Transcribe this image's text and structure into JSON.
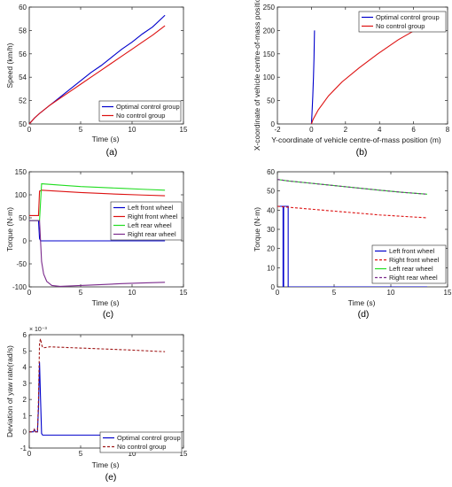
{
  "chart_data": [
    {
      "id": "a",
      "type": "line",
      "caption": "(a)",
      "xlabel": "Time (s)",
      "ylabel": "Speed (km/h)",
      "xlim": [
        0,
        15
      ],
      "ylim": [
        50,
        60
      ],
      "xticks": [
        "0",
        "5",
        "10",
        "15"
      ],
      "yticks": [
        "50",
        "52",
        "54",
        "56",
        "58",
        "60"
      ],
      "legend_position": "bottom-right",
      "series": [
        {
          "name": "Optimal control group",
          "color": "#0000cc",
          "dash": "",
          "x": [
            0,
            0.5,
            1,
            2,
            3,
            4,
            5,
            6,
            7,
            8,
            9,
            10,
            11,
            12,
            13.2
          ],
          "y": [
            50.0,
            50.5,
            50.9,
            51.6,
            52.3,
            53.0,
            53.7,
            54.4,
            55.0,
            55.7,
            56.4,
            57.0,
            57.7,
            58.3,
            59.3
          ]
        },
        {
          "name": "No control group",
          "color": "#dd1111",
          "dash": "",
          "x": [
            0,
            0.5,
            1,
            2,
            3,
            4,
            5,
            6,
            7,
            8,
            9,
            10,
            11,
            12,
            13.2
          ],
          "y": [
            50.0,
            50.5,
            50.9,
            51.6,
            52.2,
            52.8,
            53.4,
            54.0,
            54.6,
            55.2,
            55.8,
            56.4,
            57.0,
            57.6,
            58.4
          ]
        }
      ]
    },
    {
      "id": "b",
      "type": "line",
      "caption": "(b)",
      "xlabel": "Y-coordinate of vehicle centre-of-mass position (m)",
      "ylabel": "X-coordinate of vehicle centre-of-mass position (m)",
      "xlim": [
        -2,
        8
      ],
      "ylim": [
        0,
        250
      ],
      "xticks": [
        "-2",
        "0",
        "2",
        "4",
        "6",
        "8"
      ],
      "yticks": [
        "0",
        "50",
        "100",
        "150",
        "200",
        "250"
      ],
      "legend_position": "top-right",
      "series": [
        {
          "name": "Optimal control group",
          "color": "#0000cc",
          "dash": "",
          "x": [
            0,
            0.03,
            0.08,
            0.12,
            0.15,
            0.17,
            0.18
          ],
          "y": [
            0,
            20,
            60,
            100,
            140,
            180,
            200
          ]
        },
        {
          "name": "No control group",
          "color": "#dd1111",
          "dash": "",
          "x": [
            0,
            0.1,
            0.4,
            1.0,
            1.8,
            2.8,
            3.9,
            5.1,
            6.2
          ],
          "y": [
            0,
            10,
            30,
            60,
            90,
            120,
            150,
            180,
            203
          ]
        }
      ]
    },
    {
      "id": "c",
      "type": "line",
      "caption": "(c)",
      "xlabel": "Time (s)",
      "ylabel": "Torque (N·m)",
      "xlim": [
        0,
        15
      ],
      "ylim": [
        -100,
        150
      ],
      "xticks": [
        "0",
        "5",
        "10",
        "15"
      ],
      "yticks": [
        "-100",
        "-50",
        "0",
        "50",
        "100",
        "150"
      ],
      "legend_position": "right",
      "series": [
        {
          "name": "Left front wheel",
          "color": "#0000cc",
          "dash": "",
          "x": [
            0,
            0.9,
            1.0,
            1.1,
            13.2
          ],
          "y": [
            44,
            44,
            5,
            0,
            0
          ]
        },
        {
          "name": "Right front wheel",
          "color": "#dd1111",
          "dash": "",
          "x": [
            0,
            0.9,
            1.0,
            1.2,
            3,
            5,
            7,
            9,
            11,
            13.2
          ],
          "y": [
            55,
            55,
            108,
            110,
            107.5,
            105,
            103,
            101,
            99.5,
            98
          ]
        },
        {
          "name": "Left rear wheel",
          "color": "#22dd22",
          "dash": "",
          "x": [
            0,
            1.0,
            1.2,
            3,
            5,
            7,
            9,
            11,
            13.2
          ],
          "y": [
            44,
            44,
            124,
            121,
            118,
            116,
            114,
            112,
            110
          ]
        },
        {
          "name": "Right rear wheel",
          "color": "#7b2a8c",
          "dash": "",
          "x": [
            0,
            1.0,
            1.1,
            1.2,
            1.4,
            1.7,
            2.2,
            3,
            5,
            7,
            9,
            11,
            13.2
          ],
          "y": [
            44,
            44,
            0,
            -45,
            -72,
            -88,
            -97,
            -99,
            -97,
            -95,
            -93,
            -91.5,
            -90
          ]
        }
      ]
    },
    {
      "id": "d",
      "type": "line",
      "caption": "(d)",
      "xlabel": "Time (s)",
      "ylabel": "Torque (N·m)",
      "xlim": [
        0,
        15
      ],
      "ylim": [
        0,
        60
      ],
      "xticks": [
        "0",
        "5",
        "10",
        "15"
      ],
      "yticks": [
        "0",
        "10",
        "20",
        "30",
        "40",
        "50",
        "60"
      ],
      "legend_position": "bottom-right",
      "series": [
        {
          "name": "Left front wheel",
          "color": "#0000cc",
          "dash": "",
          "x": [
            0,
            0.5,
            0.5,
            0.55,
            0.55,
            0.95,
            0.95,
            1.0,
            1.0,
            13.2
          ],
          "y": [
            42,
            42,
            0,
            0,
            42,
            42,
            0,
            0,
            0,
            0
          ]
        },
        {
          "name": "Right front wheel",
          "color": "#dd1111",
          "dash": "3,2",
          "x": [
            0,
            1,
            3,
            5,
            7,
            9,
            11,
            13.2
          ],
          "y": [
            42,
            41.5,
            40.5,
            39.5,
            38.5,
            37.5,
            36.8,
            36
          ]
        },
        {
          "name": "Left rear wheel",
          "color": "#22dd22",
          "dash": "",
          "x": [
            0,
            1,
            3,
            5,
            7,
            9,
            11,
            13.2
          ],
          "y": [
            56,
            55.2,
            54,
            52.8,
            51.6,
            50.4,
            49.3,
            48.3
          ]
        },
        {
          "name": "Right rear wheel",
          "color": "#7b2a8c",
          "dash": "3,2",
          "x": [
            0,
            1,
            3,
            5,
            7,
            9,
            11,
            13.2
          ],
          "y": [
            56,
            55.2,
            54,
            52.8,
            51.6,
            50.4,
            49.3,
            48.3
          ]
        }
      ]
    },
    {
      "id": "e",
      "type": "line",
      "caption": "(e)",
      "xlabel": "Time (s)",
      "ylabel": "Deviation of yaw rate(rad/s)",
      "y_exponent": "× 10⁻³",
      "xlim": [
        0,
        15
      ],
      "ylim": [
        -1,
        6
      ],
      "xticks": [
        "0",
        "5",
        "10",
        "15"
      ],
      "yticks": [
        "-1",
        "0",
        "1",
        "2",
        "3",
        "4",
        "5",
        "6"
      ],
      "legend_position": "bottom-right",
      "series": [
        {
          "name": "Optimal control group",
          "color": "#0000cc",
          "dash": "",
          "x": [
            0,
            0.4,
            0.5,
            0.6,
            0.7,
            0.8,
            0.9,
            1.0,
            1.1,
            1.2,
            1.3,
            1.5,
            3,
            5,
            13.2
          ],
          "y": [
            0,
            0,
            0.15,
            0,
            0,
            0,
            1.5,
            4.3,
            2.0,
            -0.1,
            -0.2,
            -0.2,
            -0.2,
            -0.2,
            -0.2
          ]
        },
        {
          "name": "No control group",
          "color": "#a01818",
          "dash": "3,2",
          "x": [
            0,
            0.4,
            0.5,
            0.6,
            0.7,
            0.8,
            0.9,
            1.0,
            1.1,
            1.2,
            1.3,
            1.5,
            2,
            4,
            6,
            8,
            10,
            13.2
          ],
          "y": [
            0,
            0,
            0.15,
            0,
            0,
            0,
            2.0,
            5.5,
            5.75,
            5.4,
            5.2,
            5.2,
            5.25,
            5.2,
            5.15,
            5.1,
            5.05,
            4.95
          ]
        }
      ]
    }
  ]
}
